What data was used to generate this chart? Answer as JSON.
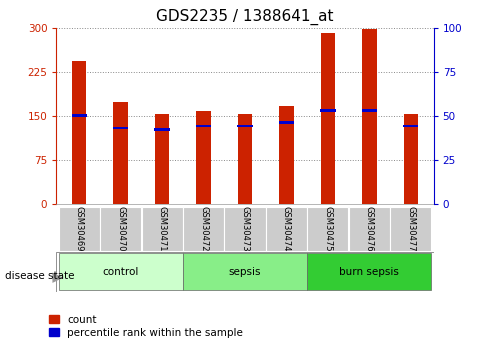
{
  "title": "GDS2235 / 1388641_at",
  "samples": [
    "GSM30469",
    "GSM30470",
    "GSM30471",
    "GSM30472",
    "GSM30473",
    "GSM30474",
    "GSM30475",
    "GSM30476",
    "GSM30477"
  ],
  "count_values": [
    243,
    173,
    152,
    158,
    153,
    166,
    290,
    298,
    152
  ],
  "percentile_values": [
    50,
    43,
    42,
    44,
    44,
    46,
    53,
    53,
    44
  ],
  "group_colors": [
    "#ccffcc",
    "#88ee88",
    "#33cc33"
  ],
  "bar_color_red": "#cc2200",
  "bar_color_blue": "#0000cc",
  "bar_width": 0.35,
  "left_ylim": [
    0,
    300
  ],
  "right_ylim": [
    0,
    100
  ],
  "left_yticks": [
    0,
    75,
    150,
    225,
    300
  ],
  "right_yticks": [
    0,
    25,
    50,
    75,
    100
  ],
  "grid_color": "#888888",
  "tick_area_color": "#cccccc",
  "disease_state_label": "disease state",
  "legend_count": "count",
  "legend_percentile": "percentile rank within the sample",
  "title_fontsize": 11,
  "axis_fontsize": 7.5,
  "label_fontsize": 8
}
